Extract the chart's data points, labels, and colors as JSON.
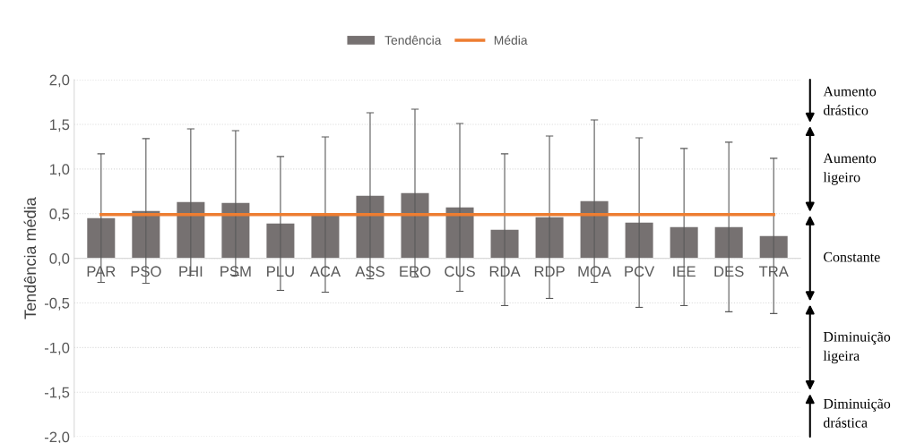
{
  "chart_data": {
    "type": "bar",
    "ylabel": "Tendência média",
    "categories": [
      "PAR",
      "PSO",
      "PHI",
      "PSM",
      "PLU",
      "ACA",
      "ASS",
      "ERO",
      "CUS",
      "RDA",
      "RDP",
      "MOA",
      "PCV",
      "IEE",
      "DES",
      "TRA"
    ],
    "series": [
      {
        "name": "Tendência",
        "color": "#767171",
        "values": [
          0.45,
          0.53,
          0.63,
          0.62,
          0.39,
          0.49,
          0.7,
          0.73,
          0.57,
          0.32,
          0.46,
          0.64,
          0.4,
          0.35,
          0.35,
          0.25
        ],
        "errors": [
          0.72,
          0.81,
          0.82,
          0.81,
          0.75,
          0.87,
          0.93,
          0.94,
          0.94,
          0.85,
          0.91,
          0.91,
          0.95,
          0.88,
          0.95,
          0.87
        ]
      },
      {
        "name": "Média",
        "type": "line",
        "color": "#ed7d31",
        "values": [
          0.49,
          0.49,
          0.49,
          0.49,
          0.49,
          0.49,
          0.49,
          0.49,
          0.49,
          0.49,
          0.49,
          0.49,
          0.49,
          0.49,
          0.49,
          0.49
        ]
      }
    ],
    "ylim": [
      -2.0,
      2.0
    ],
    "yticks": [
      {
        "value": -2.0,
        "label": "-2,0"
      },
      {
        "value": -1.5,
        "label": "-1,5"
      },
      {
        "value": -1.0,
        "label": "-1,0"
      },
      {
        "value": -0.5,
        "label": "-0,5"
      },
      {
        "value": 0.0,
        "label": "0,0"
      },
      {
        "value": 0.5,
        "label": "0,5"
      },
      {
        "value": 1.0,
        "label": "1,0"
      },
      {
        "value": 1.5,
        "label": "1,5"
      },
      {
        "value": 2.0,
        "label": "2,0"
      }
    ],
    "grid": "y",
    "legend": "top",
    "annotations": [
      "Aumento\ndrástico",
      "Aumento\nligeiro",
      "Constante",
      "Diminuição\nligeira",
      "Diminuição\ndrástica"
    ]
  }
}
